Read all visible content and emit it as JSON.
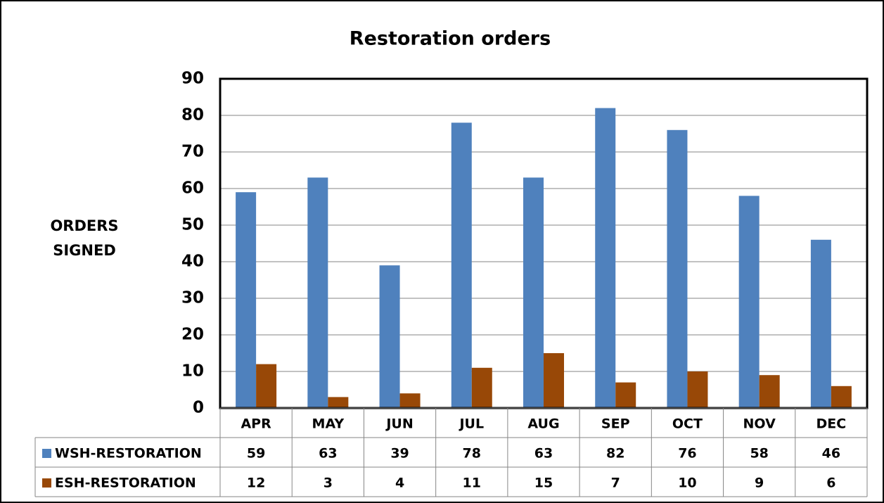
{
  "chart_data": {
    "type": "bar",
    "title": "Restoration orders",
    "y_label": [
      "ORDERS",
      "SIGNED"
    ],
    "categories": [
      "APR",
      "MAY",
      "JUN",
      "JUL",
      "AUG",
      "SEP",
      "OCT",
      "NOV",
      "DEC"
    ],
    "series": [
      {
        "name": "WSH-RESTORATION",
        "color": "#4f81bd",
        "values": [
          59,
          63,
          39,
          78,
          63,
          82,
          76,
          58,
          46
        ]
      },
      {
        "name": "ESH-RESTORATION",
        "color": "#984807",
        "values": [
          12,
          3,
          4,
          11,
          15,
          7,
          10,
          9,
          6
        ]
      }
    ],
    "ylim": [
      0,
      90
    ],
    "yticks": [
      0,
      10,
      20,
      30,
      40,
      50,
      60,
      70,
      80,
      90
    ],
    "grid": true
  }
}
